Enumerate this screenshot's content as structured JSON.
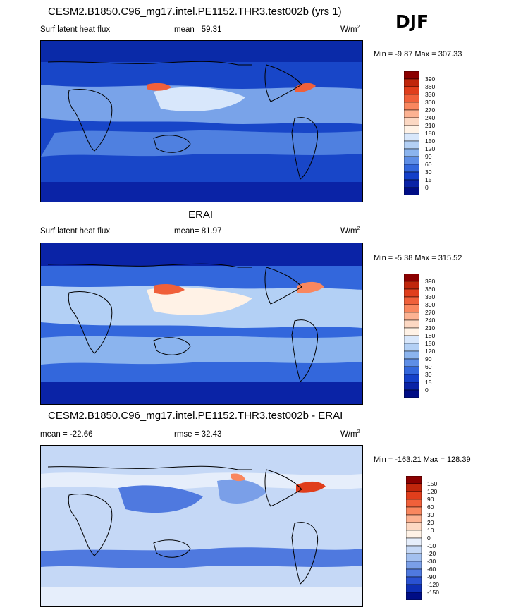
{
  "season": "DJF",
  "panels": [
    {
      "title": "CESM2.B1850.C96_mg17.intel.PE1152.THR3.test002b (yrs 1)",
      "variable": "Surf latent heat flux",
      "stat_label": "mean=",
      "stat_value": "59.31",
      "units": "W/m",
      "units_exp": "2",
      "minmax": "Min =  -9.87 Max = 307.33",
      "colorbar": {
        "labels": [
          "390",
          "360",
          "330",
          "300",
          "270",
          "240",
          "210",
          "180",
          "150",
          "120",
          "90",
          "60",
          "30",
          "15",
          "0"
        ],
        "colors": [
          "#8b0000",
          "#c0260c",
          "#e03e1c",
          "#f0603a",
          "#f9875f",
          "#fcb292",
          "#fcd8c3",
          "#fff2e6",
          "#d8e7fb",
          "#b3d0f5",
          "#8bb4ee",
          "#5e8ee6",
          "#3367dc",
          "#1440c9",
          "#0a23a6",
          "#000d85"
        ]
      }
    },
    {
      "title": "ERAI",
      "variable": "Surf latent heat flux",
      "stat_label": "mean=",
      "stat_value": "81.97",
      "units": "W/m",
      "units_exp": "2",
      "minmax": "Min =  -5.38 Max = 315.52",
      "colorbar": {
        "labels": [
          "390",
          "360",
          "330",
          "300",
          "270",
          "240",
          "210",
          "180",
          "150",
          "120",
          "90",
          "60",
          "30",
          "15",
          "0"
        ],
        "colors": [
          "#8b0000",
          "#c0260c",
          "#e03e1c",
          "#f0603a",
          "#f9875f",
          "#fcb292",
          "#fcd8c3",
          "#fff2e6",
          "#d8e7fb",
          "#b3d0f5",
          "#8bb4ee",
          "#5e8ee6",
          "#3367dc",
          "#1440c9",
          "#0a23a6",
          "#000d85"
        ]
      }
    },
    {
      "title": "CESM2.B1850.C96_mg17.intel.PE1152.THR3.test002b - ERAI",
      "variable": "mean = -22.66",
      "stat_label": "rmse =",
      "stat_value": "32.43",
      "units": "W/m",
      "units_exp": "2",
      "minmax": "Min = -163.21 Max = 128.39",
      "colorbar": {
        "labels": [
          "150",
          "120",
          "90",
          "60",
          "30",
          "20",
          "10",
          "0",
          "-10",
          "-20",
          "-30",
          "-60",
          "-90",
          "-120",
          "-150"
        ],
        "colors": [
          "#8b0000",
          "#c0260c",
          "#e03e1c",
          "#f0603a",
          "#f9875f",
          "#fcb292",
          "#fcd8c3",
          "#fff2e6",
          "#e6eefb",
          "#c5d8f6",
          "#a3c0ef",
          "#7a9fe8",
          "#4f79df",
          "#2a52d2",
          "#0e2fb4",
          "#000d85"
        ]
      }
    }
  ]
}
